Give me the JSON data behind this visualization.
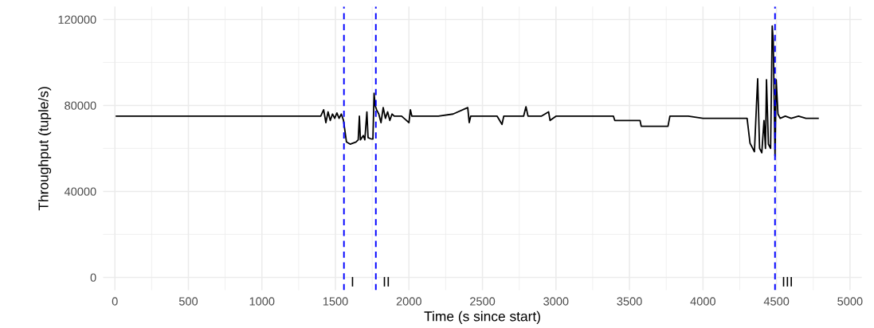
{
  "chart_data": {
    "type": "line",
    "xlabel": "Time (s since start)",
    "ylabel": "Throughput (tuple/s)",
    "xlim": [
      -80,
      5080
    ],
    "ylim": [
      -6000,
      126000
    ],
    "xticks": [
      0,
      500,
      1000,
      1500,
      2000,
      2500,
      3000,
      3500,
      4000,
      4500,
      5000
    ],
    "yticks": [
      0,
      40000,
      80000,
      120000
    ],
    "grid": true,
    "marker": "none",
    "line_style": "solid",
    "series": [
      {
        "color": "#000000",
        "x": [
          10,
          300,
          600,
          900,
          1200,
          1400,
          1420,
          1435,
          1450,
          1465,
          1480,
          1495,
          1510,
          1525,
          1540,
          1555,
          1565,
          1575,
          1600,
          1640,
          1655,
          1663,
          1670,
          1690,
          1700,
          1714,
          1722,
          1740,
          1755,
          1763,
          1770,
          1780,
          1795,
          1810,
          1825,
          1840,
          1855,
          1870,
          1885,
          1900,
          1950,
          2000,
          2010,
          2020,
          2100,
          2200,
          2300,
          2400,
          2410,
          2420,
          2500,
          2600,
          2633,
          2645,
          2700,
          2780,
          2796,
          2810,
          2900,
          2950,
          2960,
          3000,
          3100,
          3200,
          3300,
          3391,
          3400,
          3500,
          3572,
          3580,
          3700,
          3762,
          3775,
          3900,
          4000,
          4100,
          4200,
          4300,
          4320,
          4350,
          4365,
          4372,
          4385,
          4400,
          4415,
          4425,
          4432,
          4445,
          4460,
          4471,
          4478,
          4490,
          4498,
          4510,
          4525,
          4560,
          4600,
          4650,
          4700,
          4783
        ],
        "values": [
          75000,
          75000,
          75000,
          75000,
          75000,
          75000,
          78000,
          72000,
          77000,
          73000,
          76000,
          74000,
          76500,
          74000,
          76000,
          73000,
          68000,
          63000,
          62000,
          63000,
          64000,
          75000,
          64000,
          66000,
          64000,
          77000,
          65000,
          64500,
          64400,
          85700,
          80000,
          78000,
          76000,
          72000,
          79000,
          74000,
          77000,
          73000,
          76000,
          75000,
          75000,
          72000,
          78000,
          75000,
          75000,
          75000,
          76000,
          79000,
          72000,
          75000,
          75000,
          75000,
          71200,
          75000,
          75000,
          75000,
          79400,
          75000,
          75000,
          77000,
          73000,
          75000,
          75000,
          75000,
          75000,
          75000,
          73000,
          73000,
          73000,
          70300,
          70300,
          70300,
          75000,
          75000,
          74000,
          74000,
          74000,
          74000,
          62400,
          58500,
          82000,
          92400,
          60000,
          58000,
          73000,
          60000,
          92000,
          62000,
          60000,
          117000,
          110000,
          56500,
          92000,
          76000,
          74000,
          75000,
          74000,
          75000,
          74000,
          74000
        ]
      }
    ],
    "ref_lines": [
      {
        "axis": "x",
        "value": 1558,
        "label": "I",
        "color": "#0000ff",
        "line_style": "dashed"
      },
      {
        "axis": "x",
        "value": 1775,
        "label": "II",
        "color": "#0000ff",
        "line_style": "dashed"
      },
      {
        "axis": "x",
        "value": 4490,
        "label": "III",
        "color": "#0000ff",
        "line_style": "dashed"
      }
    ]
  }
}
